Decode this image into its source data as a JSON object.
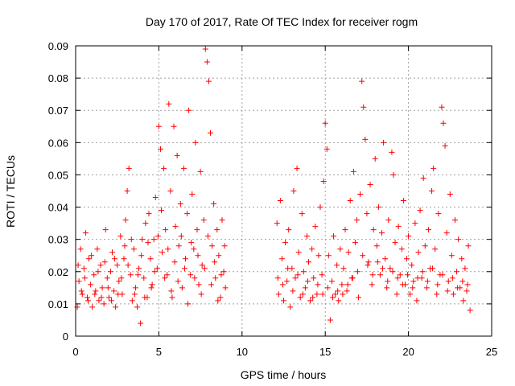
{
  "chart_data": {
    "type": "scatter",
    "title": "Day 170 of 2017, Rate Of TEC Index for receiver rogm",
    "xlabel": "GPS time / hours",
    "ylabel": "ROTI / TECUs",
    "xlim": [
      0,
      25
    ],
    "ylim": [
      0,
      0.09
    ],
    "x_ticks": [
      "0",
      "5",
      "10",
      "15",
      "20",
      "25"
    ],
    "y_ticks": [
      "0",
      "0.01",
      "0.02",
      "0.03",
      "0.04",
      "0.05",
      "0.06",
      "0.07",
      "0.08",
      "0.09"
    ],
    "grid": true,
    "marker": "+",
    "color": "#ff0000",
    "series": [
      {
        "points": [
          [
            0.1,
            0.009
          ],
          [
            0.2,
            0.017
          ],
          [
            0.3,
            0.027
          ],
          [
            0.4,
            0.013
          ],
          [
            0.5,
            0.021
          ],
          [
            0.6,
            0.032
          ],
          [
            0.7,
            0.012
          ],
          [
            0.8,
            0.024
          ],
          [
            0.9,
            0.016
          ],
          [
            1.0,
            0.009
          ],
          [
            1.1,
            0.019
          ],
          [
            1.2,
            0.014
          ],
          [
            1.3,
            0.027
          ],
          [
            1.4,
            0.011
          ],
          [
            1.5,
            0.022
          ],
          [
            1.6,
            0.015
          ],
          [
            1.7,
            0.01
          ],
          [
            1.8,
            0.033
          ],
          [
            1.9,
            0.018
          ],
          [
            2.0,
            0.012
          ],
          [
            2.1,
            0.02
          ],
          [
            2.2,
            0.026
          ],
          [
            2.3,
            0.014
          ],
          [
            2.4,
            0.009
          ],
          [
            2.5,
            0.022
          ],
          [
            2.6,
            0.017
          ],
          [
            2.7,
            0.031
          ],
          [
            2.8,
            0.013
          ],
          [
            2.9,
            0.024
          ],
          [
            3.0,
            0.036
          ],
          [
            3.1,
            0.045
          ],
          [
            3.2,
            0.052
          ],
          [
            3.3,
            0.019
          ],
          [
            3.4,
            0.011
          ],
          [
            3.5,
            0.027
          ],
          [
            3.6,
            0.015
          ],
          [
            3.7,
            0.009
          ],
          [
            3.8,
            0.021
          ],
          [
            3.9,
            0.004
          ],
          [
            4.0,
            0.03
          ],
          [
            4.1,
            0.018
          ],
          [
            4.2,
            0.035
          ],
          [
            4.3,
            0.012
          ],
          [
            4.4,
            0.038
          ],
          [
            4.5,
            0.024
          ],
          [
            4.6,
            0.016
          ],
          [
            4.7,
            0.03
          ],
          [
            4.8,
            0.043
          ],
          [
            4.9,
            0.021
          ],
          [
            5.0,
            0.065
          ],
          [
            5.1,
            0.058
          ],
          [
            5.2,
            0.026
          ],
          [
            5.3,
            0.052
          ],
          [
            5.4,
            0.033
          ],
          [
            5.5,
            0.019
          ],
          [
            5.6,
            0.072
          ],
          [
            5.7,
            0.045
          ],
          [
            5.8,
            0.012
          ],
          [
            5.9,
            0.065
          ],
          [
            6.0,
            0.034
          ],
          [
            6.1,
            0.056
          ],
          [
            6.2,
            0.028
          ],
          [
            6.3,
            0.041
          ],
          [
            6.4,
            0.015
          ],
          [
            6.5,
            0.052
          ],
          [
            6.6,
            0.024
          ],
          [
            6.7,
            0.038
          ],
          [
            6.8,
            0.07
          ],
          [
            6.9,
            0.019
          ],
          [
            7.0,
            0.044
          ],
          [
            7.1,
            0.027
          ],
          [
            7.2,
            0.06
          ],
          [
            7.3,
            0.033
          ],
          [
            7.4,
            0.016
          ],
          [
            7.5,
            0.051
          ],
          [
            7.6,
            0.022
          ],
          [
            7.7,
            0.036
          ],
          [
            7.8,
            0.089
          ],
          [
            7.9,
            0.085
          ],
          [
            8.0,
            0.079
          ],
          [
            8.1,
            0.063
          ],
          [
            8.2,
            0.028
          ],
          [
            8.3,
            0.041
          ],
          [
            8.4,
            0.018
          ],
          [
            8.5,
            0.033
          ],
          [
            8.6,
            0.025
          ],
          [
            8.7,
            0.012
          ],
          [
            8.8,
            0.036
          ],
          [
            8.9,
            0.02
          ],
          [
            9.0,
            0.015
          ],
          [
            0.15,
            0.022
          ],
          [
            0.35,
            0.014
          ],
          [
            0.55,
            0.018
          ],
          [
            0.75,
            0.011
          ],
          [
            0.95,
            0.025
          ],
          [
            1.15,
            0.013
          ],
          [
            1.35,
            0.02
          ],
          [
            1.55,
            0.012
          ],
          [
            1.75,
            0.023
          ],
          [
            1.95,
            0.015
          ],
          [
            2.15,
            0.011
          ],
          [
            2.35,
            0.024
          ],
          [
            2.55,
            0.013
          ],
          [
            2.75,
            0.018
          ],
          [
            2.95,
            0.028
          ],
          [
            3.15,
            0.022
          ],
          [
            3.35,
            0.03
          ],
          [
            3.55,
            0.013
          ],
          [
            3.75,
            0.019
          ],
          [
            3.95,
            0.025
          ],
          [
            4.15,
            0.012
          ],
          [
            4.35,
            0.029
          ],
          [
            4.55,
            0.015
          ],
          [
            4.75,
            0.02
          ],
          [
            4.95,
            0.031
          ],
          [
            5.15,
            0.039
          ],
          [
            5.35,
            0.018
          ],
          [
            5.55,
            0.027
          ],
          [
            5.75,
            0.014
          ],
          [
            5.95,
            0.023
          ],
          [
            6.15,
            0.017
          ],
          [
            6.35,
            0.031
          ],
          [
            6.55,
            0.021
          ],
          [
            6.75,
            0.01
          ],
          [
            6.95,
            0.029
          ],
          [
            7.15,
            0.018
          ],
          [
            7.35,
            0.025
          ],
          [
            7.55,
            0.013
          ],
          [
            7.75,
            0.021
          ],
          [
            7.95,
            0.031
          ],
          [
            8.15,
            0.016
          ],
          [
            8.35,
            0.023
          ],
          [
            8.55,
            0.011
          ],
          [
            8.75,
            0.019
          ],
          [
            8.95,
            0.028
          ],
          [
            12.1,
            0.035
          ],
          [
            12.2,
            0.013
          ],
          [
            12.3,
            0.042
          ],
          [
            12.4,
            0.024
          ],
          [
            12.5,
            0.011
          ],
          [
            12.6,
            0.029
          ],
          [
            12.7,
            0.017
          ],
          [
            12.8,
            0.033
          ],
          [
            12.9,
            0.009
          ],
          [
            13.0,
            0.021
          ],
          [
            13.1,
            0.045
          ],
          [
            13.2,
            0.018
          ],
          [
            13.3,
            0.052
          ],
          [
            13.4,
            0.026
          ],
          [
            13.5,
            0.012
          ],
          [
            13.6,
            0.038
          ],
          [
            13.7,
            0.02
          ],
          [
            13.8,
            0.015
          ],
          [
            13.9,
            0.031
          ],
          [
            14.0,
            0.023
          ],
          [
            14.1,
            0.011
          ],
          [
            14.2,
            0.027
          ],
          [
            14.3,
            0.018
          ],
          [
            14.4,
            0.034
          ],
          [
            14.5,
            0.013
          ],
          [
            14.6,
            0.025
          ],
          [
            14.7,
            0.04
          ],
          [
            14.8,
            0.019
          ],
          [
            14.9,
            0.048
          ],
          [
            15.0,
            0.066
          ],
          [
            15.1,
            0.058
          ],
          [
            15.2,
            0.025
          ],
          [
            15.3,
            0.005
          ],
          [
            15.4,
            0.017
          ],
          [
            15.5,
            0.031
          ],
          [
            15.6,
            0.013
          ],
          [
            15.7,
            0.022
          ],
          [
            15.8,
            0.011
          ],
          [
            15.9,
            0.027
          ],
          [
            16.0,
            0.016
          ],
          [
            16.1,
            0.021
          ],
          [
            16.2,
            0.033
          ],
          [
            16.3,
            0.014
          ],
          [
            16.4,
            0.026
          ],
          [
            16.5,
            0.042
          ],
          [
            16.6,
            0.018
          ],
          [
            16.7,
            0.051
          ],
          [
            16.8,
            0.029
          ],
          [
            16.9,
            0.036
          ],
          [
            17.0,
            0.012
          ],
          [
            17.1,
            0.044
          ],
          [
            17.2,
            0.079
          ],
          [
            17.3,
            0.071
          ],
          [
            17.4,
            0.061
          ],
          [
            17.5,
            0.038
          ],
          [
            17.6,
            0.023
          ],
          [
            17.7,
            0.047
          ],
          [
            17.8,
            0.016
          ],
          [
            17.9,
            0.033
          ],
          [
            18.0,
            0.055
          ],
          [
            18.1,
            0.028
          ],
          [
            18.2,
            0.04
          ],
          [
            18.3,
            0.019
          ],
          [
            18.4,
            0.032
          ],
          [
            18.5,
            0.06
          ],
          [
            18.6,
            0.024
          ],
          [
            18.7,
            0.015
          ],
          [
            18.8,
            0.036
          ],
          [
            18.9,
            0.021
          ],
          [
            19.0,
            0.057
          ],
          [
            19.1,
            0.05
          ],
          [
            19.2,
            0.029
          ],
          [
            19.3,
            0.013
          ],
          [
            19.4,
            0.034
          ],
          [
            19.5,
            0.019
          ],
          [
            19.6,
            0.027
          ],
          [
            19.7,
            0.042
          ],
          [
            19.8,
            0.016
          ],
          [
            19.9,
            0.024
          ],
          [
            20.0,
            0.031
          ],
          [
            20.1,
            0.013
          ],
          [
            20.2,
            0.022
          ],
          [
            20.3,
            0.017
          ],
          [
            20.4,
            0.035
          ],
          [
            20.5,
            0.011
          ],
          [
            20.6,
            0.026
          ],
          [
            20.7,
            0.039
          ],
          [
            20.8,
            0.018
          ],
          [
            20.9,
            0.049
          ],
          [
            21.0,
            0.028
          ],
          [
            21.1,
            0.015
          ],
          [
            21.2,
            0.033
          ],
          [
            21.3,
            0.021
          ],
          [
            21.4,
            0.045
          ],
          [
            21.5,
            0.052
          ],
          [
            21.6,
            0.027
          ],
          [
            21.7,
            0.013
          ],
          [
            21.8,
            0.038
          ],
          [
            21.9,
            0.019
          ],
          [
            22.0,
            0.071
          ],
          [
            22.1,
            0.066
          ],
          [
            22.2,
            0.059
          ],
          [
            22.3,
            0.032
          ],
          [
            22.4,
            0.017
          ],
          [
            22.5,
            0.044
          ],
          [
            22.6,
            0.025
          ],
          [
            22.7,
            0.013
          ],
          [
            22.8,
            0.036
          ],
          [
            22.9,
            0.02
          ],
          [
            23.0,
            0.03
          ],
          [
            23.1,
            0.015
          ],
          [
            23.2,
            0.024
          ],
          [
            23.3,
            0.011
          ],
          [
            23.4,
            0.021
          ],
          [
            23.5,
            0.014
          ],
          [
            23.6,
            0.028
          ],
          [
            23.7,
            0.008
          ],
          [
            12.15,
            0.018
          ],
          [
            12.45,
            0.016
          ],
          [
            12.75,
            0.021
          ],
          [
            13.05,
            0.014
          ],
          [
            13.35,
            0.019
          ],
          [
            13.65,
            0.013
          ],
          [
            13.95,
            0.017
          ],
          [
            14.25,
            0.012
          ],
          [
            14.55,
            0.016
          ],
          [
            14.85,
            0.013
          ],
          [
            15.15,
            0.015
          ],
          [
            15.45,
            0.012
          ],
          [
            15.75,
            0.014
          ],
          [
            16.05,
            0.013
          ],
          [
            16.35,
            0.016
          ],
          [
            16.65,
            0.018
          ],
          [
            16.95,
            0.02
          ],
          [
            17.25,
            0.025
          ],
          [
            17.55,
            0.022
          ],
          [
            17.85,
            0.019
          ],
          [
            18.15,
            0.023
          ],
          [
            18.45,
            0.021
          ],
          [
            18.75,
            0.017
          ],
          [
            19.05,
            0.02
          ],
          [
            19.35,
            0.018
          ],
          [
            19.65,
            0.016
          ],
          [
            19.95,
            0.019
          ],
          [
            20.25,
            0.015
          ],
          [
            20.55,
            0.018
          ],
          [
            20.85,
            0.02
          ],
          [
            21.15,
            0.017
          ],
          [
            21.45,
            0.021
          ],
          [
            21.75,
            0.016
          ],
          [
            22.05,
            0.019
          ],
          [
            22.35,
            0.014
          ],
          [
            22.65,
            0.018
          ],
          [
            22.95,
            0.015
          ],
          [
            23.25,
            0.017
          ],
          [
            23.55,
            0.016
          ]
        ]
      }
    ]
  }
}
